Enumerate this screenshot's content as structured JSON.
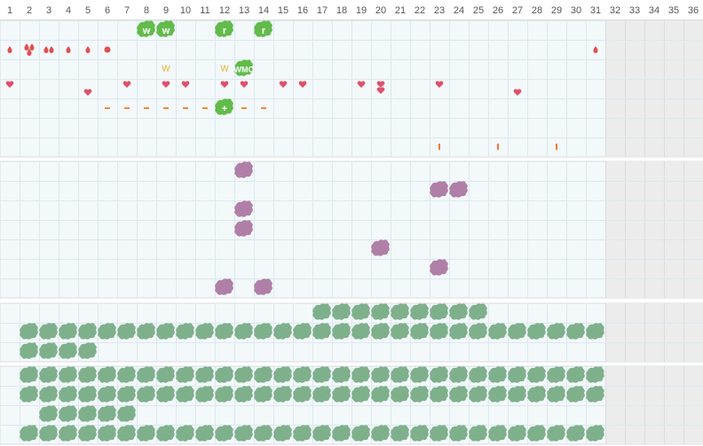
{
  "header": {
    "days": [
      1,
      2,
      3,
      4,
      5,
      6,
      7,
      8,
      9,
      10,
      11,
      12,
      13,
      14,
      15,
      16,
      17,
      18,
      19,
      20,
      21,
      22,
      23,
      24,
      25,
      26,
      27,
      28,
      29,
      30,
      31,
      32,
      33,
      34,
      35,
      36
    ],
    "shaded_from": 32
  },
  "sections": [
    {
      "rows": [
        [
          {
            "day": 8,
            "kind": "green",
            "label": "w"
          },
          {
            "day": 9,
            "kind": "green",
            "label": "w"
          },
          {
            "day": 12,
            "kind": "green",
            "label": "r"
          },
          {
            "day": 14,
            "kind": "green",
            "label": "r"
          }
        ],
        [
          {
            "day": 1,
            "kind": "drop"
          },
          {
            "day": 2,
            "kind": "drops3"
          },
          {
            "day": 3,
            "kind": "drops2"
          },
          {
            "day": 4,
            "kind": "drop"
          },
          {
            "day": 5,
            "kind": "drop"
          },
          {
            "day": 6,
            "kind": "spot"
          },
          {
            "day": 31,
            "kind": "drop"
          }
        ],
        [
          {
            "day": 9,
            "kind": "text",
            "label": "W"
          },
          {
            "day": 12,
            "kind": "text",
            "label": "W"
          },
          {
            "day": 13,
            "kind": "green",
            "label": "WMO"
          }
        ],
        [
          {
            "day": 1,
            "kind": "heart"
          },
          {
            "day": 7,
            "kind": "heart"
          },
          {
            "day": 9,
            "kind": "heart"
          },
          {
            "day": 10,
            "kind": "heart"
          },
          {
            "day": 12,
            "kind": "heart"
          },
          {
            "day": 13,
            "kind": "heart"
          },
          {
            "day": 15,
            "kind": "heart"
          },
          {
            "day": 16,
            "kind": "heart"
          },
          {
            "day": 19,
            "kind": "heart"
          },
          {
            "day": 20,
            "kind": "heart2"
          },
          {
            "day": 23,
            "kind": "heart"
          },
          {
            "day": 5,
            "kind": "heartlow"
          },
          {
            "day": 27,
            "kind": "heartlow"
          }
        ],
        [
          {
            "day": 6,
            "kind": "dash"
          },
          {
            "day": 7,
            "kind": "dash"
          },
          {
            "day": 8,
            "kind": "dash"
          },
          {
            "day": 9,
            "kind": "dash"
          },
          {
            "day": 10,
            "kind": "dash"
          },
          {
            "day": 11,
            "kind": "dash"
          },
          {
            "day": 12,
            "kind": "green",
            "label": "+"
          },
          {
            "day": 13,
            "kind": "dash"
          },
          {
            "day": 14,
            "kind": "dash"
          }
        ],
        [],
        [
          {
            "day": 23,
            "kind": "tick"
          },
          {
            "day": 26,
            "kind": "tick"
          },
          {
            "day": 29,
            "kind": "tick"
          }
        ]
      ]
    },
    {
      "rows": [
        [
          {
            "day": 13,
            "kind": "purple"
          }
        ],
        [
          {
            "day": 23,
            "kind": "purple"
          },
          {
            "day": 24,
            "kind": "purple"
          }
        ],
        [
          {
            "day": 13,
            "kind": "purple"
          }
        ],
        [
          {
            "day": 13,
            "kind": "purple"
          }
        ],
        [
          {
            "day": 20,
            "kind": "purple"
          }
        ],
        [
          {
            "day": 23,
            "kind": "purple"
          }
        ],
        [
          {
            "day": 12,
            "kind": "purple"
          },
          {
            "day": 14,
            "kind": "purple"
          }
        ]
      ]
    },
    {
      "rows": [
        [
          {
            "from": 17,
            "to": 25,
            "kind": "sage"
          }
        ],
        [
          {
            "from": 2,
            "to": 31,
            "kind": "sage"
          }
        ],
        [
          {
            "from": 2,
            "to": 5,
            "kind": "sage"
          }
        ]
      ]
    },
    {
      "rows": [
        [
          {
            "from": 2,
            "to": 31,
            "kind": "sage"
          }
        ],
        [
          {
            "from": 2,
            "to": 31,
            "kind": "sage"
          }
        ],
        [
          {
            "from": 3,
            "to": 7,
            "kind": "sage"
          }
        ],
        [
          {
            "from": 2,
            "to": 31,
            "kind": "sage"
          }
        ]
      ]
    }
  ]
}
